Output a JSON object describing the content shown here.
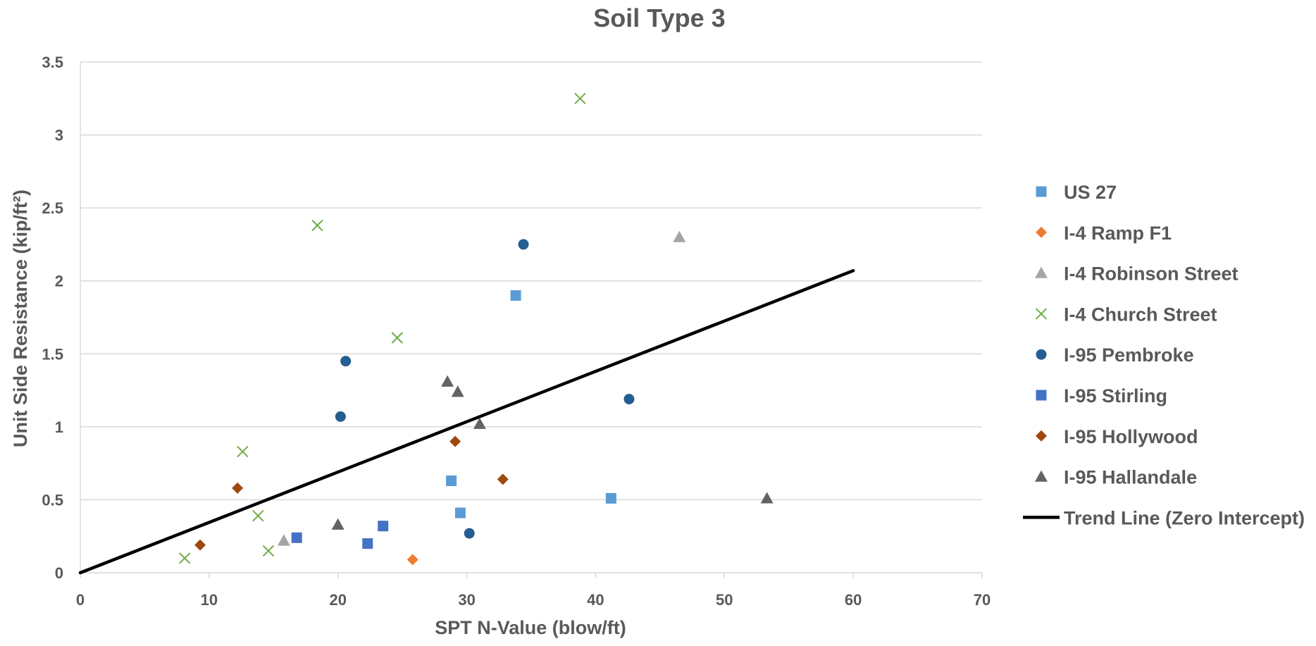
{
  "chart_data": {
    "type": "scatter",
    "title": "Soil Type 3",
    "xlabel": "SPT N-Value (blow/ft)",
    "ylabel": "Unit Side Resistance (kip/ft²)",
    "xlim": [
      0,
      70
    ],
    "ylim": [
      0,
      3.5
    ],
    "x_ticks": [
      "0",
      "10",
      "20",
      "30",
      "40",
      "50",
      "60",
      "70"
    ],
    "y_ticks": [
      "0",
      "0.5",
      "1",
      "1.5",
      "2",
      "2.5",
      "3",
      "3.5"
    ],
    "grid": "horizontal",
    "legend_position": "right",
    "series": [
      {
        "name": "US 27",
        "marker": "square",
        "color": "#5B9BD5",
        "points": [
          [
            28.8,
            0.63
          ],
          [
            29.5,
            0.41
          ],
          [
            33.8,
            1.9
          ],
          [
            41.2,
            0.51
          ]
        ]
      },
      {
        "name": "I-4 Ramp F1",
        "marker": "diamond",
        "color": "#ED7D31",
        "points": [
          [
            25.8,
            0.09
          ]
        ]
      },
      {
        "name": "I-4 Robinson Street",
        "marker": "triangle",
        "color": "#A5A5A5",
        "points": [
          [
            15.8,
            0.22
          ],
          [
            46.5,
            2.3
          ]
        ]
      },
      {
        "name": "I-4 Church Street",
        "marker": "x",
        "color": "#70AD47",
        "points": [
          [
            8.1,
            0.1
          ],
          [
            12.6,
            0.83
          ],
          [
            13.8,
            0.39
          ],
          [
            14.6,
            0.15
          ],
          [
            18.4,
            2.38
          ],
          [
            24.6,
            1.61
          ],
          [
            38.8,
            3.25
          ]
        ]
      },
      {
        "name": "I-95 Pembroke",
        "marker": "circle",
        "color": "#255E91",
        "points": [
          [
            20.2,
            1.07
          ],
          [
            20.6,
            1.45
          ],
          [
            30.2,
            0.27
          ],
          [
            34.4,
            2.25
          ],
          [
            42.6,
            1.19
          ]
        ]
      },
      {
        "name": "I-95 Stirling",
        "marker": "square",
        "color": "#4472C4",
        "points": [
          [
            16.8,
            0.24
          ],
          [
            22.3,
            0.2
          ],
          [
            23.5,
            0.32
          ]
        ]
      },
      {
        "name": "I-95 Hollywood",
        "marker": "diamond",
        "color": "#9E480E",
        "points": [
          [
            9.3,
            0.19
          ],
          [
            12.2,
            0.58
          ],
          [
            29.1,
            0.9
          ],
          [
            32.8,
            0.64
          ]
        ]
      },
      {
        "name": "I-95 Hallandale",
        "marker": "triangle",
        "color": "#636363",
        "points": [
          [
            20.0,
            0.33
          ],
          [
            28.5,
            1.31
          ],
          [
            29.3,
            1.24
          ],
          [
            31.0,
            1.02
          ],
          [
            53.3,
            0.51
          ]
        ]
      }
    ],
    "trend_line": {
      "name": "Trend Line (Zero Intercept)",
      "color": "#000000",
      "points": [
        [
          0,
          0
        ],
        [
          60,
          2.07
        ]
      ]
    }
  }
}
